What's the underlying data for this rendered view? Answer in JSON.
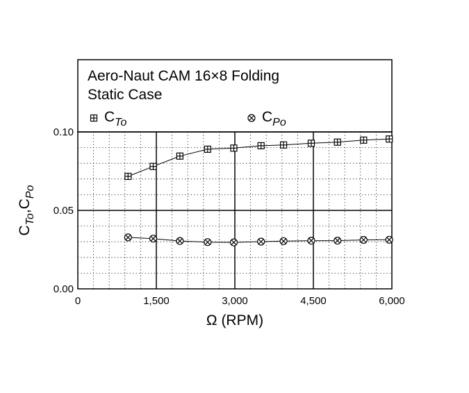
{
  "chart_data": {
    "type": "scatter",
    "title_lines": [
      "Aero-Naut CAM 16×8 Folding",
      "Static Case"
    ],
    "xlabel": "Ω (RPM)",
    "ylabel": "C_To, C_Po",
    "ylabel_parts": {
      "c1": "C",
      "sub1": "To",
      "sep": ",",
      "c2": "C",
      "sub2": "Po"
    },
    "xlim": [
      0,
      6000
    ],
    "ylim": [
      0,
      0.1
    ],
    "x_ticks": [
      0,
      1500,
      3000,
      4500,
      6000
    ],
    "x_tick_labels": [
      "0",
      "1,500",
      "3,000",
      "4,500",
      "6,000"
    ],
    "y_ticks": [
      0,
      0.05,
      0.1
    ],
    "y_tick_labels": [
      "0.00",
      "0.05",
      "0.10"
    ],
    "grid": {
      "major": true,
      "minor": "dotted"
    },
    "legend_position": "top",
    "series": [
      {
        "name": "C_To",
        "label_main": "C",
        "label_sub": "To",
        "marker": "boxed-plus",
        "x": [
          960,
          1440,
          1950,
          2480,
          2980,
          3500,
          3930,
          4460,
          4960,
          5460,
          5950
        ],
        "y": [
          0.0717,
          0.078,
          0.0846,
          0.089,
          0.0897,
          0.0912,
          0.0917,
          0.0928,
          0.0935,
          0.0948,
          0.0955
        ]
      },
      {
        "name": "C_Po",
        "label_main": "C",
        "label_sub": "Po",
        "marker": "circled-x",
        "x": [
          960,
          1440,
          1950,
          2480,
          2980,
          3500,
          3930,
          4460,
          4960,
          5460,
          5950
        ],
        "y": [
          0.0328,
          0.032,
          0.0305,
          0.0298,
          0.0296,
          0.0301,
          0.0304,
          0.0307,
          0.0307,
          0.0312,
          0.0313
        ]
      }
    ]
  }
}
